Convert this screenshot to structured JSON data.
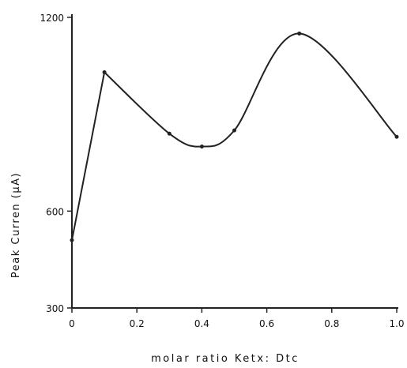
{
  "chart_data": {
    "type": "line",
    "title": "",
    "xlabel": "molar ratio Ketx: Dtc",
    "ylabel": "Peak Curren (μA)",
    "xlim": [
      0,
      1.0
    ],
    "ylim": [
      300,
      1200
    ],
    "x_ticks": [
      0,
      0.2,
      0.4,
      0.6,
      0.8,
      1.0
    ],
    "x_tick_labels": [
      "0",
      "0.2",
      "0.4",
      "0.6",
      "0.8",
      "1.0"
    ],
    "y_ticks": [
      300,
      600,
      1200
    ],
    "y_tick_labels": [
      "300",
      "600",
      "1200"
    ],
    "grid": false,
    "legend": "none",
    "series": [
      {
        "x": [
          0,
          0.1,
          0.3,
          0.4,
          0.5,
          0.7,
          1.0
        ],
        "y": [
          510,
          1030,
          840,
          800,
          850,
          1150,
          830
        ]
      }
    ],
    "line_color": "#222222"
  }
}
